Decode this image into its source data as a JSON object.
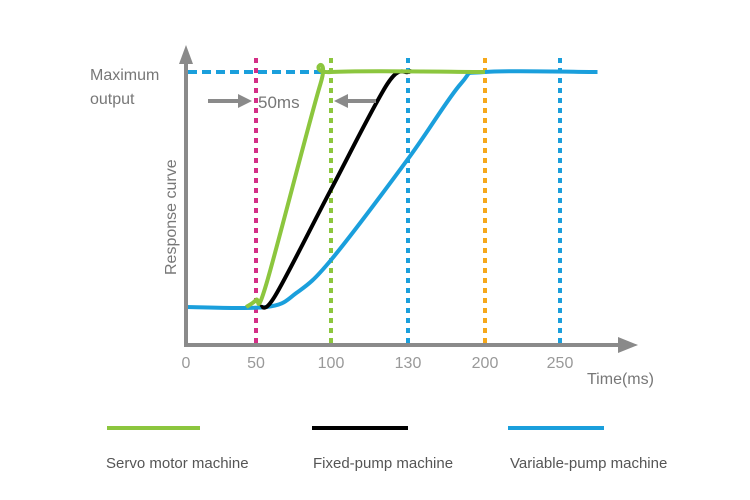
{
  "chart_data": {
    "type": "line",
    "title": "",
    "xlabel": "Time(ms)",
    "ylabel": "Response curve",
    "y_max_label": [
      "Maximum",
      "output"
    ],
    "x_ticks": [
      0,
      50,
      100,
      130,
      200,
      250
    ],
    "ylim": [
      0,
      1
    ],
    "annotation": "50ms",
    "colors": {
      "servo": "#8cc63e",
      "fixed": "#000000",
      "variable": "#1a9fdc",
      "marker50": "#d42e86",
      "marker200": "#f6a81a",
      "axis": "#8a8a8a"
    },
    "vlines": [
      {
        "x": 50,
        "color": "#d42e86"
      },
      {
        "x": 100,
        "color": "#8cc63e"
      },
      {
        "x": 130,
        "color": "#1a9fdc"
      },
      {
        "x": 200,
        "color": "#f6a81a"
      },
      {
        "x": 250,
        "color": "#1a9fdc"
      }
    ],
    "series": [
      {
        "name": "Servo motor machine",
        "color": "#8cc63e",
        "x": [
          43,
          50,
          57,
          93,
          100,
          200
        ],
        "y": [
          0,
          0.03,
          0.1,
          0.95,
          1,
          1
        ]
      },
      {
        "name": "Fixed-pump machine",
        "color": "#000000",
        "x": [
          53,
          63,
          100,
          122,
          130,
          132
        ],
        "y": [
          0,
          0.05,
          0.5,
          0.95,
          1,
          1
        ]
      },
      {
        "name": "Variable-pump machine",
        "color": "#1a9fdc",
        "x": [
          0,
          57,
          77,
          100,
          130,
          178,
          200,
          275
        ],
        "y": [
          0,
          0,
          0.06,
          0.2,
          0.63,
          0.95,
          1,
          1
        ]
      }
    ]
  }
}
